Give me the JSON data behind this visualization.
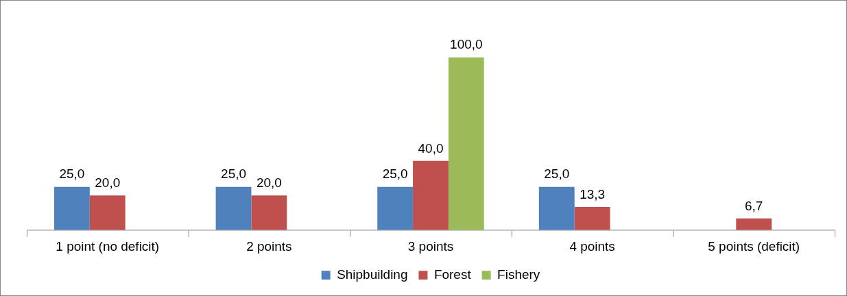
{
  "chart_data": {
    "type": "bar",
    "categories": [
      "1 point (no deficit)",
      "2 points",
      "3 points",
      "4 points",
      "5 points (deficit)"
    ],
    "series": [
      {
        "name": "Shipbuilding",
        "color": "#4f81bd",
        "values": [
          25,
          25,
          25,
          25,
          null
        ],
        "value_labels": [
          "25,0",
          "25,0",
          "25,0",
          "25,0",
          null
        ]
      },
      {
        "name": "Forest",
        "color": "#c0504d",
        "values": [
          20,
          20,
          40,
          13.3,
          6.7
        ],
        "value_labels": [
          "20,0",
          "20,0",
          "40,0",
          "13,3",
          "6,7"
        ]
      },
      {
        "name": "Fishery",
        "color": "#9bbb59",
        "values": [
          null,
          null,
          100,
          null,
          null
        ],
        "value_labels": [
          null,
          null,
          "100,0",
          null,
          null
        ]
      }
    ],
    "legend": "bottom",
    "grid": false
  }
}
